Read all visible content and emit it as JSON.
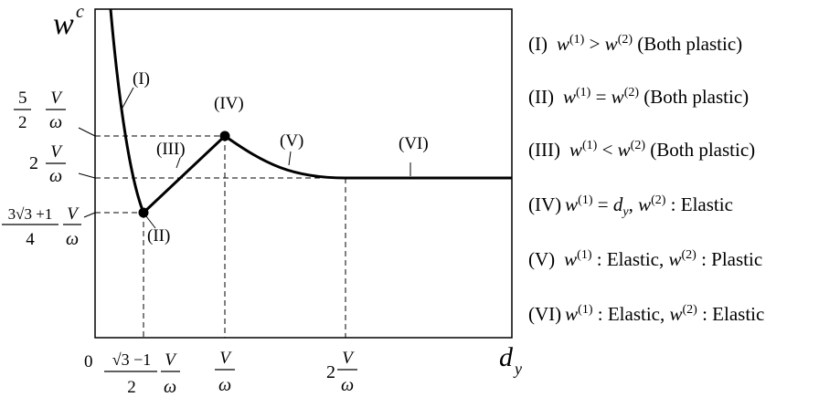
{
  "axes": {
    "y_label": "w",
    "y_label_sup": "c",
    "x_label": "d",
    "x_label_sub": "y",
    "origin": "0"
  },
  "region_labels": [
    "(I)",
    "(II)",
    "(III)",
    "(IV)",
    "(V)",
    "(VI)"
  ],
  "y_ticks": {
    "t1": {
      "coef_num": "5",
      "coef_den": "2",
      "num": "V",
      "den": "ω"
    },
    "t2": {
      "coef": "2",
      "num": "V",
      "den": "ω"
    },
    "t3": {
      "coef_num": "3√3 +1",
      "coef_den": "4",
      "num": "V",
      "den": "ω"
    }
  },
  "x_ticks": {
    "t1": {
      "coef_num": "√3 −1",
      "coef_den": "2",
      "num": "V",
      "den": "ω"
    },
    "t2": {
      "num": "V",
      "den": "ω"
    },
    "t3": {
      "coef": "2",
      "num": "V",
      "den": "ω"
    }
  },
  "legend": [
    {
      "tag": "(I)",
      "w1": "w",
      "s1": "(1)",
      "mid": " > ",
      "w2": "w",
      "s2": "(2)",
      "tail": "(Both plastic)"
    },
    {
      "tag": "(II)",
      "w1": "w",
      "s1": "(1)",
      "mid": " = ",
      "w2": "w",
      "s2": "(2)",
      "tail": "(Both plastic)"
    },
    {
      "tag": "(III)",
      "w1": "w",
      "s1": "(1)",
      "mid": " < ",
      "w2": "w",
      "s2": "(2)",
      "tail": "(Both plastic)"
    },
    {
      "tag": "(IV)",
      "w1": "w",
      "s1": "(1)",
      "eq": " = ",
      "d": "d",
      "dsub": "y",
      "comma": ", ",
      "w2": "w",
      "s2": "(2)",
      "tail": " : Elastic"
    },
    {
      "tag": "(V)",
      "w1": "w",
      "s1": "(1)",
      "mid": " : Elastic, ",
      "w2": "w",
      "s2": "(2)",
      "tail": " : Plastic"
    },
    {
      "tag": "(VI)",
      "w1": "w",
      "s1": "(1)",
      "mid": " : Elastic, ",
      "w2": "w",
      "s2": "(2)",
      "tail": " : Elastic"
    }
  ]
}
